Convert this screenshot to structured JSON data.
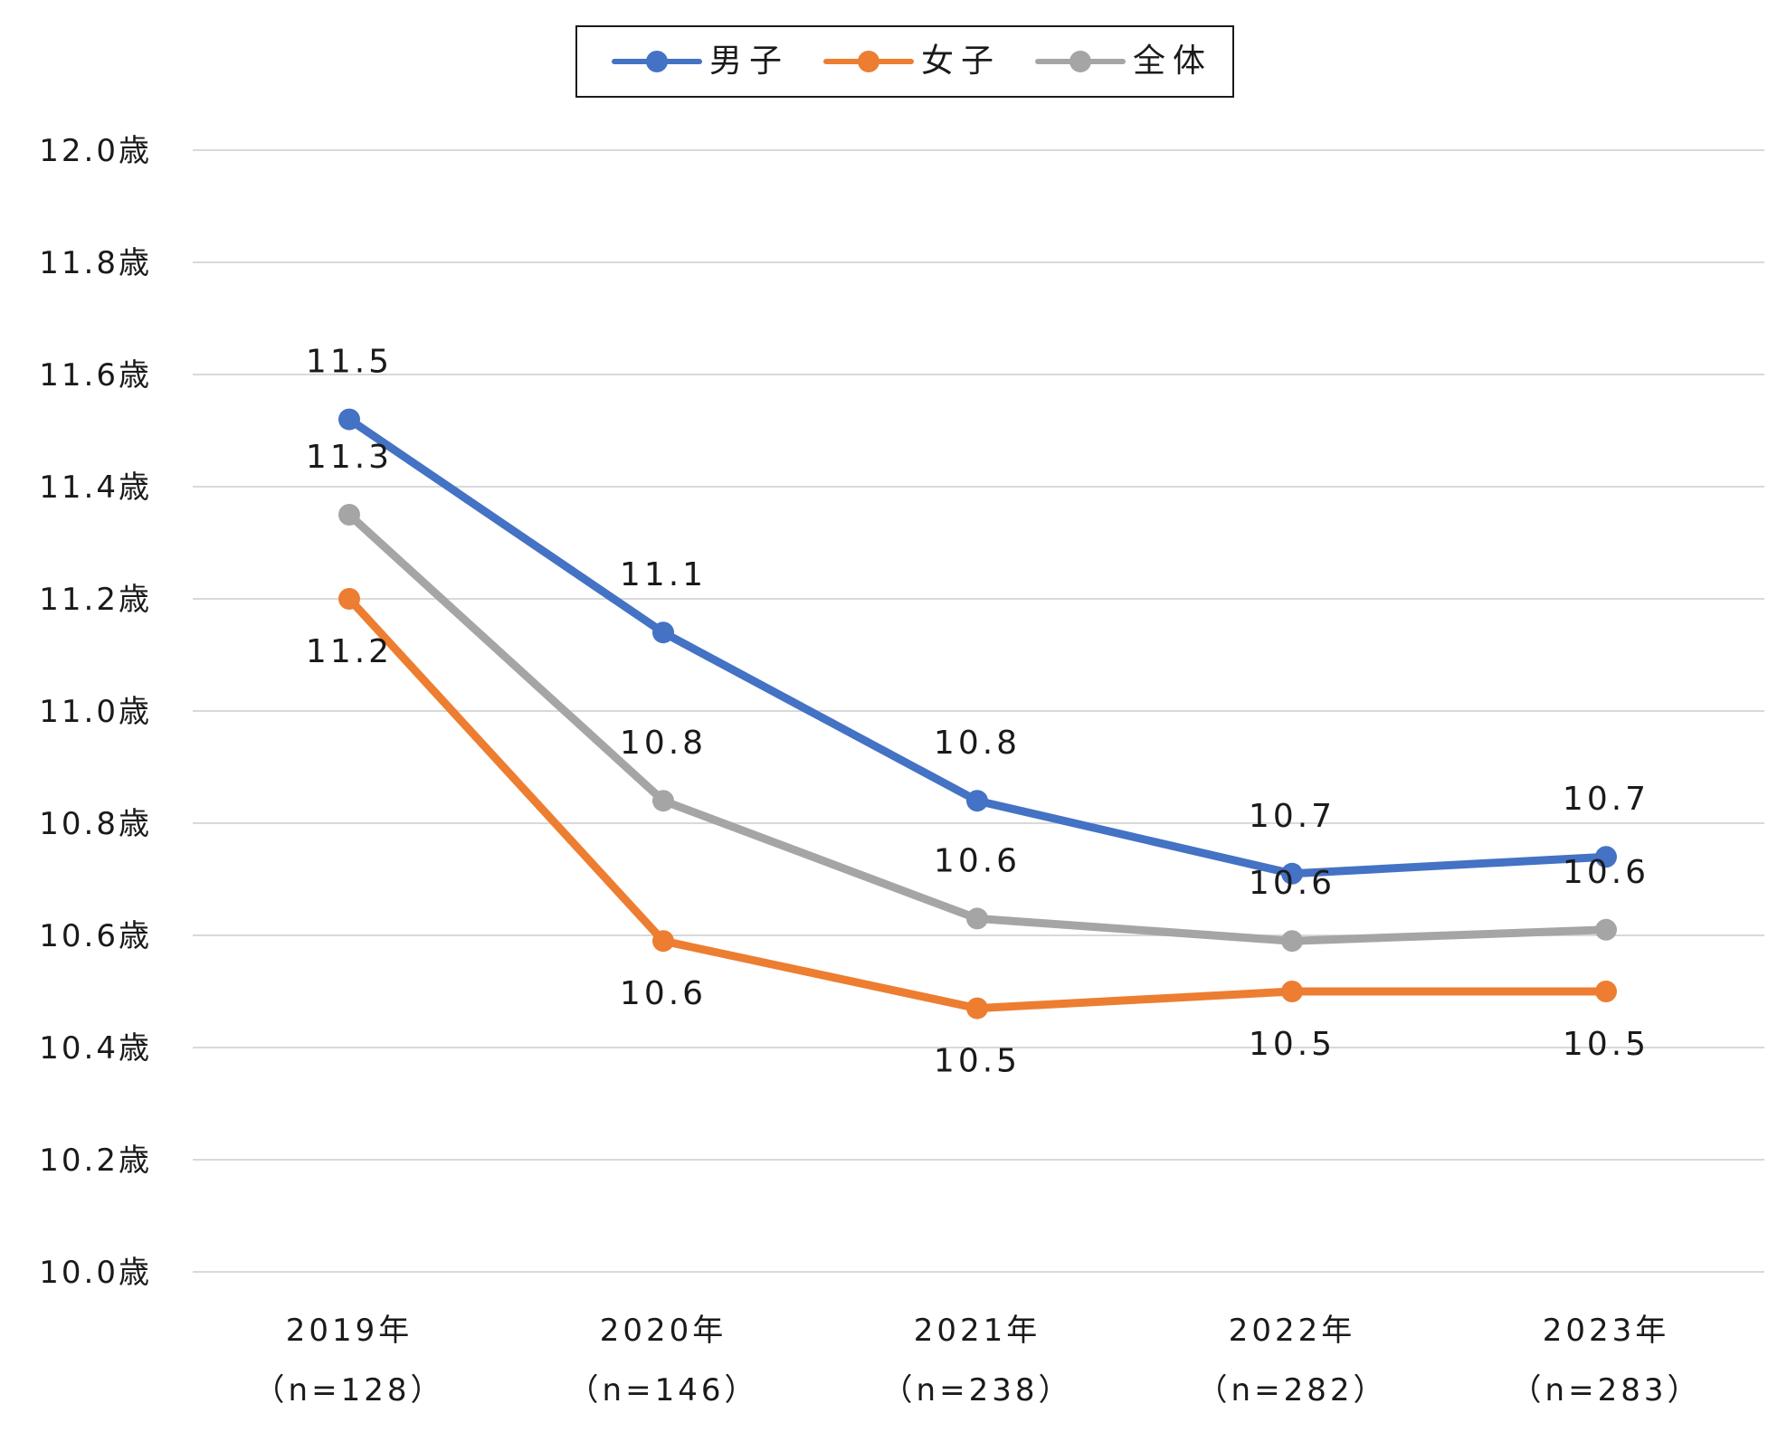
{
  "chart_data": {
    "type": "line",
    "title": "",
    "xlabel": "",
    "ylabel": "",
    "ylim": [
      10.0,
      12.0
    ],
    "ytick_step": 0.2,
    "y_tick_suffix": "歳",
    "grid": true,
    "legend_position": "top",
    "x": [
      "2019年",
      "2020年",
      "2021年",
      "2022年",
      "2023年"
    ],
    "x_sublabels": [
      "（n=128）",
      "（n=146）",
      "（n=238）",
      "（n=282）",
      "（n=283）"
    ],
    "y_tick_labels": [
      "12.0歳",
      "11.8歳",
      "11.6歳",
      "11.4歳",
      "11.2歳",
      "11.0歳",
      "10.8歳",
      "10.6歳",
      "10.4歳",
      "10.2歳",
      "10.0歳"
    ],
    "series": [
      {
        "name": "男子",
        "color": "#4472C4",
        "values": [
          11.52,
          11.14,
          10.84,
          10.71,
          10.74
        ],
        "labels": [
          "11.5",
          "11.1",
          "10.8",
          "10.7",
          "10.7"
        ],
        "label_position": "above"
      },
      {
        "name": "女子",
        "color": "#ED7D31",
        "values": [
          11.2,
          10.59,
          10.47,
          10.5,
          10.5
        ],
        "labels": [
          "11.2",
          "10.6",
          "10.5",
          "10.5",
          "10.5"
        ],
        "label_position": "below"
      },
      {
        "name": "全体",
        "color": "#A5A5A5",
        "values": [
          11.35,
          10.84,
          10.63,
          10.59,
          10.61
        ],
        "labels": [
          "11.3",
          "10.8",
          "10.6",
          "10.6",
          "10.6"
        ],
        "label_position": "above"
      }
    ]
  },
  "legend": {
    "items": [
      {
        "label": "男子",
        "color": "#4472C4"
      },
      {
        "label": "女子",
        "color": "#ED7D31"
      },
      {
        "label": "全体",
        "color": "#A5A5A5"
      }
    ]
  }
}
